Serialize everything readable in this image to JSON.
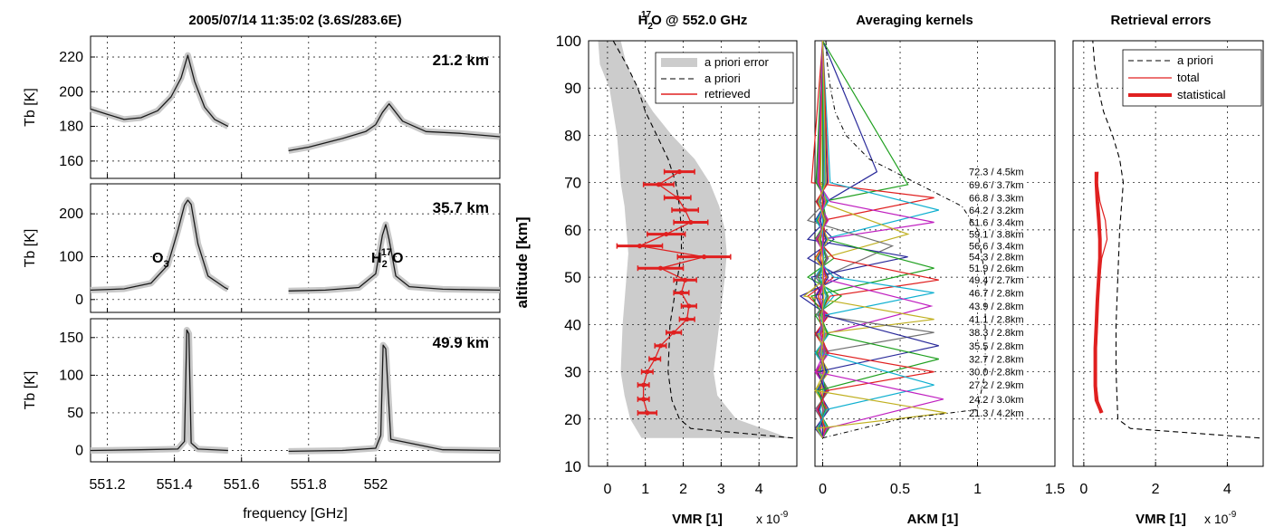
{
  "figure": {
    "spectra_title": "2005/07/14 11:35:02 (3.6S/283.6E)",
    "spectra_xlabel": "frequency [GHz]",
    "tb_ylabel": "Tb [K]",
    "freq_ticks": [
      "551.2",
      "551.4",
      "551.6",
      "551.8",
      "552"
    ],
    "altitude_label": "altitude [km]",
    "alt_ticks": [
      "10",
      "20",
      "30",
      "40",
      "50",
      "60",
      "70",
      "80",
      "90",
      "100"
    ],
    "multiplier": "x 10",
    "multiplier_exp": "-9"
  },
  "colors": {
    "spectrum_line": "#1a1a1a",
    "fit_band": "#c8c8c8",
    "retrieved": "#e02020",
    "apriori_fill": "#cccccc",
    "kernel_colors": [
      "#2a2a9a",
      "#20a020",
      "#e02020",
      "#10b0d0",
      "#c020c0",
      "#c0b020",
      "#707070"
    ]
  },
  "chart_data": [
    {
      "type": "line",
      "panel": "spectrum-1",
      "annotation": "21.2 km",
      "xlim": [
        551.15,
        552.37
      ],
      "ylim": [
        150,
        232
      ],
      "yticks": [
        "160",
        "180",
        "200",
        "220"
      ],
      "series": [
        {
          "segments": [
            {
              "x": [
                551.15,
                551.2,
                551.25,
                551.3,
                551.35,
                551.39,
                551.42,
                551.44,
                551.46,
                551.49,
                551.52,
                551.56
              ],
              "y": [
                190,
                187,
                184,
                185,
                189,
                197,
                208,
                221,
                206,
                191,
                184,
                180
              ]
            },
            {
              "x": [
                551.74,
                551.8,
                551.9,
                551.97,
                552.0,
                552.02,
                552.04,
                552.08,
                552.15,
                552.25,
                552.37
              ],
              "y": [
                166,
                168,
                173,
                177,
                181,
                188,
                193,
                183,
                177,
                176,
                174
              ]
            }
          ]
        }
      ]
    },
    {
      "type": "line",
      "panel": "spectrum-2",
      "annotation": "35.7 km",
      "xlim": [
        551.15,
        552.37
      ],
      "ylim": [
        -30,
        270
      ],
      "yticks": [
        "0",
        "100",
        "200"
      ],
      "text_labels": [
        {
          "base": "O",
          "sub": "3",
          "sup": ""
        },
        {
          "base": "H",
          "sub": "2",
          "sup": "17",
          "tail": "O"
        }
      ],
      "series": [
        {
          "segments": [
            {
              "x": [
                551.15,
                551.25,
                551.33,
                551.38,
                551.41,
                551.43,
                551.44,
                551.45,
                551.47,
                551.5,
                551.55,
                551.56
              ],
              "y": [
                22,
                25,
                38,
                80,
                160,
                220,
                232,
                222,
                130,
                55,
                28,
                24
              ]
            },
            {
              "x": [
                551.74,
                551.85,
                551.95,
                552.0,
                552.02,
                552.03,
                552.04,
                552.06,
                552.1,
                552.2,
                552.37
              ],
              "y": [
                20,
                22,
                28,
                60,
                150,
                175,
                140,
                55,
                30,
                24,
                22
              ]
            }
          ]
        }
      ]
    },
    {
      "type": "line",
      "panel": "spectrum-3",
      "annotation": "49.9 km",
      "xlim": [
        551.15,
        552.37
      ],
      "ylim": [
        -15,
        175
      ],
      "yticks": [
        "0",
        "50",
        "100",
        "150"
      ],
      "series": [
        {
          "segments": [
            {
              "x": [
                551.15,
                551.3,
                551.41,
                551.43,
                551.437,
                551.443,
                551.45,
                551.47,
                551.56
              ],
              "y": [
                0,
                1,
                2,
                12,
                160,
                155,
                10,
                2,
                0
              ]
            },
            {
              "x": [
                551.74,
                551.9,
                552.0,
                552.015,
                552.022,
                552.03,
                552.045,
                552.2,
                552.37
              ],
              "y": [
                -1,
                0,
                3,
                20,
                140,
                135,
                15,
                1,
                0
              ]
            }
          ]
        }
      ]
    },
    {
      "type": "line",
      "panel": "profile",
      "title_base": "H",
      "title_sub": "2",
      "title_sup": "17",
      "title_tail": "O @ 552.0 GHz",
      "xlabel": "VMR [1]",
      "xlim": [
        -0.5,
        5
      ],
      "xticks": [
        "0",
        "1",
        "2",
        "3",
        "4"
      ],
      "ylim": [
        10,
        100
      ],
      "legend": [
        "a priori error",
        "a priori",
        "retrieved"
      ],
      "legend_position": "top-right",
      "apriori_error_band": {
        "alt": [
          16,
          20,
          25,
          30,
          40,
          50,
          55,
          60,
          65,
          70,
          75,
          80,
          85,
          90,
          95,
          100
        ],
        "low": [
          0.9,
          0.6,
          0.45,
          0.35,
          0.4,
          0.5,
          0.55,
          0.5,
          0.45,
          0.35,
          0.3,
          0.25,
          0.15,
          0.05,
          -0.2,
          -0.25
        ],
        "high": [
          4.8,
          3.4,
          2.9,
          2.8,
          2.95,
          3.1,
          3.15,
          3.1,
          2.95,
          2.7,
          2.3,
          1.7,
          1.2,
          0.8,
          0.5,
          0.35
        ]
      },
      "apriori": {
        "alt": [
          16,
          18,
          20,
          24,
          30,
          40,
          50,
          55,
          60,
          65,
          70,
          75,
          80,
          85,
          90,
          95,
          100
        ],
        "vmr": [
          4.9,
          2.2,
          1.9,
          1.7,
          1.6,
          1.65,
          1.85,
          1.95,
          1.95,
          1.9,
          1.8,
          1.6,
          1.3,
          1.0,
          0.8,
          0.5,
          0.15
        ]
      },
      "retrieved": {
        "alt": [
          21.3,
          24.2,
          27.2,
          30.0,
          32.7,
          35.5,
          38.3,
          41.1,
          43.9,
          46.7,
          49.4,
          51.9,
          54.3,
          56.6,
          59.1,
          61.6,
          64.2,
          66.8,
          69.6,
          72.3
        ],
        "vmr": [
          1.05,
          0.95,
          0.95,
          1.05,
          1.25,
          1.4,
          1.75,
          2.1,
          2.15,
          1.95,
          2.05,
          1.4,
          2.55,
          0.85,
          1.55,
          2.2,
          2.05,
          1.85,
          1.35,
          1.9
        ],
        "err": [
          0.25,
          0.15,
          0.15,
          0.15,
          0.15,
          0.15,
          0.2,
          0.2,
          0.2,
          0.2,
          0.3,
          0.6,
          0.7,
          0.6,
          0.5,
          0.45,
          0.35,
          0.35,
          0.4,
          0.4
        ]
      }
    },
    {
      "type": "line",
      "panel": "averaging-kernels",
      "title": "Averaging kernels",
      "xlabel": "AKM [1]",
      "xlim": [
        -0.05,
        1.5
      ],
      "xticks": [
        "0",
        "0.5",
        "1",
        "1.5"
      ],
      "ylim": [
        10,
        100
      ],
      "kernel_labels": [
        "72.3 / 4.5km",
        "69.6 / 3.7km",
        "66.8 / 3.3km",
        "64.2 / 3.2km",
        "61.6 / 3.4km",
        "59.1 / 3.8km",
        "56.6 / 3.4km",
        "54.3 / 2.8km",
        "51.9 / 2.6km",
        "49.4 / 2.7km",
        "46.7 / 2.8km",
        "43.9 / 2.8km",
        "41.1 / 2.8km",
        "38.3 / 2.8km",
        "35.5 / 2.8km",
        "32.7 / 2.8km",
        "30.0 / 2.8km",
        "27.2 / 2.9km",
        "24.2 / 3.0km",
        "21.3 / 4.2km"
      ],
      "peak_alt": [
        72.3,
        69.6,
        66.8,
        64.2,
        61.6,
        59.1,
        56.6,
        54.3,
        51.9,
        49.4,
        46.7,
        43.9,
        41.1,
        38.3,
        35.5,
        32.7,
        30.0,
        27.2,
        24.2,
        21.3
      ],
      "peak_value": [
        0.35,
        0.55,
        0.72,
        0.75,
        0.72,
        0.55,
        0.45,
        0.55,
        0.72,
        0.75,
        0.72,
        0.7,
        0.72,
        0.72,
        0.75,
        0.75,
        0.72,
        0.72,
        0.78,
        0.8
      ],
      "measurement_response": {
        "alt": [
          16,
          20,
          22,
          30,
          40,
          50,
          60,
          65,
          70,
          75,
          80,
          85,
          90,
          95,
          100
        ],
        "value": [
          0,
          0.5,
          1.0,
          1.05,
          1.05,
          1.05,
          1.0,
          0.9,
          0.6,
          0.3,
          0.15,
          0.08,
          0.05,
          0.03,
          0.02
        ]
      }
    },
    {
      "type": "line",
      "panel": "errors",
      "title": "Retrieval errors",
      "xlabel": "VMR [1]",
      "xlim": [
        -0.3,
        5
      ],
      "xticks": [
        "0",
        "2",
        "4"
      ],
      "ylim": [
        10,
        100
      ],
      "legend": [
        "a priori",
        "total",
        "statistical"
      ],
      "legend_position": "top-right",
      "apriori_err": {
        "alt": [
          16,
          18,
          20,
          30,
          40,
          50,
          60,
          65,
          70,
          75,
          80,
          85,
          90,
          95,
          100
        ],
        "vmr": [
          4.9,
          1.3,
          0.95,
          0.9,
          0.9,
          0.95,
          1.0,
          1.05,
          1.1,
          1.0,
          0.8,
          0.55,
          0.4,
          0.3,
          0.25
        ]
      },
      "total": {
        "alt": [
          21.3,
          24,
          27,
          30,
          35,
          40,
          45,
          50,
          54,
          58,
          62,
          66,
          70,
          72.3
        ],
        "vmr": [
          0.45,
          0.4,
          0.35,
          0.35,
          0.35,
          0.38,
          0.4,
          0.45,
          0.5,
          0.65,
          0.6,
          0.45,
          0.38,
          0.4
        ]
      },
      "statistical": {
        "alt": [
          21.3,
          24,
          27,
          30,
          35,
          40,
          45,
          50,
          54,
          58,
          62,
          66,
          70,
          72.3
        ],
        "vmr": [
          0.5,
          0.35,
          0.32,
          0.32,
          0.32,
          0.35,
          0.38,
          0.42,
          0.45,
          0.45,
          0.42,
          0.38,
          0.35,
          0.35
        ]
      }
    }
  ]
}
